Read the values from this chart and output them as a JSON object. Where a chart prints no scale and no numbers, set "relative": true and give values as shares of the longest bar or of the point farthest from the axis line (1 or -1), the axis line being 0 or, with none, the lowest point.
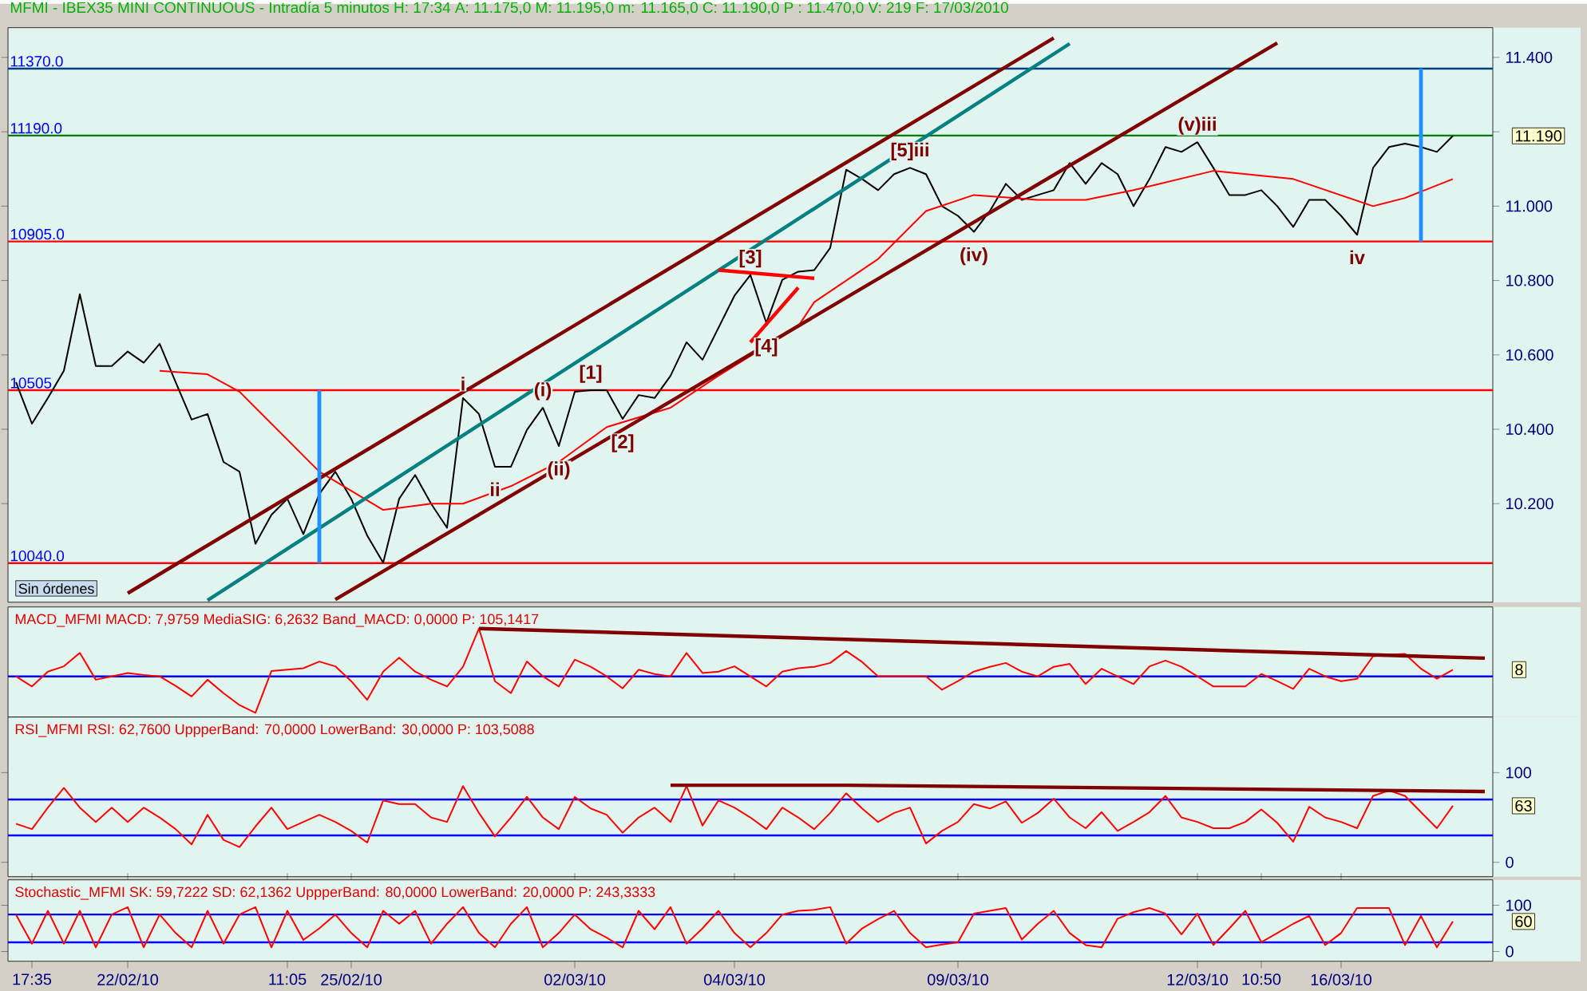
{
  "chart_data": [
    {
      "type": "line",
      "title": "MFMI - IBEX35 MINI CONTINUOUS - Intradía 5 minutos  H: 17:34  A: 11.175,0  M: 11.195,0  m: 11.165,0  C: 11.190,0  P : 11.470,0  V: 219  F: 17/03/2010",
      "categories": [
        null,
        null,
        null,
        null,
        null,
        null,
        null,
        null,
        null,
        null,
        null,
        null,
        null,
        null,
        null,
        null,
        null,
        null,
        null,
        null,
        null,
        null,
        null,
        null,
        null,
        null,
        null,
        null,
        null,
        null,
        null,
        null,
        null,
        null,
        null,
        null,
        null,
        null,
        null,
        null,
        null,
        null,
        null,
        null,
        null,
        null,
        null,
        null,
        null,
        null,
        null,
        null,
        null,
        null,
        null,
        null,
        null,
        null,
        null,
        null,
        null,
        null,
        null,
        null,
        null,
        null,
        null,
        null,
        null,
        null,
        null,
        null,
        null,
        null,
        null,
        null,
        null,
        null,
        null,
        null,
        null,
        null,
        null,
        null,
        null,
        null,
        null,
        null,
        null,
        null,
        null,
        null,
        null
      ],
      "ylim": [
        9.935,
        11.48
      ],
      "yticks": [
        {
          "value": 10.2,
          "label": "10.200"
        },
        {
          "value": 10.4,
          "label": "10.400"
        },
        {
          "value": 10.6,
          "label": "10.600"
        },
        {
          "value": 10.8,
          "label": "10.800"
        },
        {
          "value": 11.0,
          "label": "11.000"
        },
        {
          "value": 11.2,
          "label": null
        },
        {
          "value": 11.4,
          "label": "11.400"
        }
      ],
      "tick_labels": "y",
      "series": [
        {
          "color": "#000000",
          "values": [
            10.527,
            10.415,
            10.484,
            10.557,
            10.763,
            10.57,
            10.57,
            10.609,
            10.579,
            10.63,
            10.527,
            10.426,
            10.441,
            10.312,
            10.286,
            10.092,
            10.17,
            10.213,
            10.118,
            10.226,
            10.286,
            10.213,
            10.114,
            10.041,
            10.213,
            10.277,
            10.2,
            10.135,
            10.484,
            10.441,
            10.299,
            10.299,
            10.398,
            10.458,
            10.355,
            10.501,
            10.505,
            10.505,
            10.428,
            10.492,
            10.484,
            10.544,
            10.634,
            10.587,
            10.673,
            10.759,
            10.815,
            10.686,
            10.802,
            10.824,
            10.828,
            10.888,
            11.098,
            11.073,
            11.043,
            11.086,
            11.103,
            11.086,
            11.0,
            10.974,
            10.931,
            10.987,
            11.06,
            11.017,
            11.03,
            11.043,
            11.116,
            11.06,
            11.116,
            11.086,
            11.0,
            11.073,
            11.159,
            11.146,
            11.172,
            11.103,
            11.03,
            11.03,
            11.043,
            11.0,
            10.944,
            11.017,
            11.017,
            10.974,
            10.923,
            11.103,
            11.159,
            11.168,
            11.159,
            11.146,
            11.189,
            null,
            null
          ]
        },
        {
          "color": "#ff0000",
          "values": [
            null,
            null,
            null,
            null,
            null,
            null,
            null,
            null,
            null,
            10.557,
            null,
            null,
            10.548,
            null,
            10.501,
            null,
            null,
            null,
            null,
            10.286,
            null,
            null,
            null,
            10.183,
            null,
            null,
            10.2,
            null,
            10.2,
            null,
            null,
            10.247,
            null,
            null,
            10.312,
            null,
            null,
            10.406,
            null,
            null,
            null,
            10.458,
            null,
            null,
            10.544,
            null,
            null,
            null,
            null,
            10.677,
            10.742,
            null,
            null,
            null,
            10.858,
            null,
            null,
            10.987,
            null,
            null,
            11.03,
            null,
            null,
            null,
            11.017,
            null,
            null,
            11.017,
            null,
            null,
            11.043,
            null,
            null,
            null,
            null,
            11.095,
            null,
            null,
            null,
            null,
            11.073,
            null,
            null,
            null,
            null,
            11.0,
            null,
            11.022,
            null,
            null,
            11.073,
            null,
            null
          ]
        },
        {
          "color": "#800000",
          "values": [
            null,
            null,
            null,
            null,
            null,
            null,
            null,
            9.959,
            null,
            null,
            null,
            null,
            null,
            null,
            null,
            null,
            null,
            null,
            null,
            null,
            null,
            null,
            null,
            null,
            null,
            null,
            null,
            null,
            null,
            null,
            null,
            null,
            null,
            null,
            null,
            null,
            null,
            null,
            null,
            null,
            null,
            null,
            null,
            null,
            null,
            null,
            null,
            null,
            null,
            null,
            null,
            null,
            null,
            null,
            null,
            null,
            null,
            null,
            null,
            null,
            null,
            null,
            null,
            null,
            null,
            11.452,
            null,
            null,
            null,
            null,
            null,
            null,
            null,
            null,
            null,
            null,
            null,
            null,
            null,
            null,
            null,
            null,
            null,
            null,
            null,
            null,
            null,
            null,
            null,
            null,
            null,
            null,
            null
          ]
        },
        {
          "color": "#008080",
          "values": [
            null,
            null,
            null,
            null,
            null,
            null,
            null,
            null,
            null,
            null,
            null,
            null,
            9.94,
            null,
            null,
            null,
            null,
            null,
            null,
            null,
            null,
            null,
            null,
            null,
            null,
            null,
            null,
            null,
            null,
            null,
            null,
            null,
            null,
            null,
            null,
            null,
            null,
            null,
            null,
            null,
            null,
            null,
            null,
            null,
            null,
            null,
            null,
            null,
            null,
            null,
            null,
            null,
            null,
            null,
            null,
            null,
            null,
            null,
            null,
            null,
            null,
            null,
            null,
            null,
            null,
            null,
            11.437,
            null,
            null,
            null,
            null,
            null,
            null,
            null,
            null,
            null,
            null,
            null,
            null,
            null,
            null,
            null,
            null,
            null,
            null,
            null,
            null,
            null,
            null,
            null,
            null,
            null,
            null
          ]
        },
        {
          "color": "#800000",
          "values": [
            null,
            null,
            null,
            null,
            null,
            null,
            null,
            null,
            null,
            null,
            null,
            null,
            null,
            null,
            null,
            null,
            null,
            null,
            null,
            null,
            9.942,
            null,
            null,
            null,
            null,
            null,
            null,
            null,
            null,
            null,
            null,
            null,
            null,
            null,
            null,
            null,
            null,
            null,
            null,
            null,
            null,
            null,
            null,
            null,
            null,
            null,
            null,
            null,
            null,
            null,
            null,
            null,
            null,
            null,
            null,
            null,
            null,
            null,
            null,
            null,
            null,
            null,
            null,
            null,
            null,
            null,
            null,
            null,
            null,
            null,
            null,
            null,
            null,
            null,
            null,
            null,
            null,
            null,
            null,
            11.439,
            null,
            null,
            null,
            null,
            null,
            null,
            null,
            null,
            null,
            null,
            null,
            null,
            null
          ]
        },
        {
          "color": "#ff0000",
          "values": [
            null,
            null,
            null,
            null,
            null,
            null,
            null,
            null,
            null,
            null,
            null,
            null,
            null,
            null,
            null,
            null,
            null,
            null,
            null,
            null,
            null,
            null,
            null,
            null,
            null,
            null,
            null,
            null,
            null,
            null,
            null,
            null,
            null,
            null,
            null,
            null,
            null,
            null,
            null,
            null,
            null,
            null,
            null,
            null,
            10.828,
            null,
            null,
            null,
            null,
            null,
            10.806,
            null,
            null,
            null,
            null,
            null,
            null,
            null,
            null,
            null,
            null,
            null,
            null,
            null,
            null,
            null,
            null,
            null,
            null,
            null,
            null,
            null,
            null,
            null,
            null,
            null,
            null,
            null,
            null,
            null,
            null,
            null,
            null,
            null,
            null,
            null,
            null,
            null,
            null,
            null,
            null,
            null,
            null
          ]
        },
        {
          "color": "#ff0000",
          "values": [
            null,
            null,
            null,
            null,
            null,
            null,
            null,
            null,
            null,
            null,
            null,
            null,
            null,
            null,
            null,
            null,
            null,
            null,
            null,
            null,
            null,
            null,
            null,
            null,
            null,
            null,
            null,
            null,
            null,
            null,
            null,
            null,
            null,
            null,
            null,
            null,
            null,
            null,
            null,
            null,
            null,
            null,
            null,
            null,
            null,
            null,
            10.634,
            null,
            null,
            10.781,
            null,
            null,
            null,
            null,
            null,
            null,
            null,
            null,
            null,
            null,
            null,
            null,
            null,
            null,
            null,
            null,
            null,
            null,
            null,
            null,
            null,
            null,
            null,
            null,
            null,
            null,
            null,
            null,
            null,
            null,
            null,
            null,
            null,
            null,
            null,
            null,
            null,
            null,
            null,
            null,
            null,
            null,
            null
          ]
        },
        {
          "type": "bar",
          "color": "#1e90ff",
          "values": [
            null,
            null,
            null,
            null,
            null,
            null,
            null,
            null,
            null,
            null,
            null,
            null,
            null,
            null,
            null,
            null,
            null,
            null,
            null,
            0.465,
            null,
            null,
            null,
            null,
            null,
            null,
            null,
            null,
            null,
            null,
            null,
            null,
            null,
            null,
            null,
            null,
            null,
            null,
            null,
            null,
            null,
            null,
            null,
            null,
            null,
            null,
            null,
            null,
            null,
            null,
            null,
            null,
            null,
            null,
            null,
            null,
            null,
            null,
            null,
            null,
            null,
            null,
            null,
            null,
            null,
            null,
            null,
            null,
            null,
            null,
            null,
            null,
            null,
            null,
            null,
            null,
            null,
            null,
            null,
            null,
            null,
            null,
            null,
            null,
            null,
            null,
            null,
            null,
            0.465,
            null,
            null,
            null,
            null
          ],
          "base": [
            null,
            null,
            null,
            null,
            null,
            null,
            null,
            null,
            null,
            null,
            null,
            null,
            null,
            null,
            null,
            null,
            null,
            null,
            null,
            10.04,
            null,
            null,
            null,
            null,
            null,
            null,
            null,
            null,
            null,
            null,
            null,
            null,
            null,
            null,
            null,
            null,
            null,
            null,
            null,
            null,
            null,
            null,
            null,
            null,
            null,
            null,
            null,
            null,
            null,
            null,
            null,
            null,
            null,
            null,
            null,
            null,
            null,
            null,
            null,
            null,
            null,
            null,
            null,
            null,
            null,
            null,
            null,
            null,
            null,
            null,
            null,
            null,
            null,
            null,
            null,
            null,
            null,
            null,
            null,
            null,
            null,
            null,
            null,
            null,
            null,
            null,
            null,
            null,
            10.905,
            null,
            null,
            null,
            null
          ]
        }
      ],
      "ref_lines": [
        {
          "axis": "y",
          "value": 11.37,
          "label": "11370.0",
          "color": "#004080"
        },
        {
          "axis": "y",
          "value": 11.19,
          "label": "11190.0",
          "color": "#008000"
        },
        {
          "axis": "y",
          "value": 10.905,
          "label": "10905.0",
          "color": "#ff0000"
        },
        {
          "axis": "y",
          "value": 10.505,
          "label": "10505",
          "color": "#ff0000"
        },
        {
          "axis": "y",
          "value": 10.04,
          "label": "10040.0",
          "color": "#ff0000"
        }
      ],
      "annotations": [
        {
          "text": "i",
          "y": 10.484
        },
        {
          "text": "ii",
          "y": 10.299
        },
        {
          "text": "(i)",
          "y": 10.458
        },
        {
          "text": "(ii)",
          "y": 10.355
        },
        {
          "text": "[1]",
          "y": 10.505
        },
        {
          "text": "[2]",
          "y": 10.428
        },
        {
          "text": "[3]",
          "y": 10.815
        },
        {
          "text": "[4]",
          "y": 10.686
        },
        {
          "text": "[5]iii",
          "y": 11.103
        },
        {
          "text": "(iv)",
          "y": 10.931
        },
        {
          "text": "(v)iii",
          "y": 11.172
        },
        {
          "text": "iv",
          "y": 10.923
        },
        "11.190",
        "Sin órdenes"
      ]
    },
    {
      "type": "line",
      "title": "MACD_MFMI  MACD: 7,9759  MediaSIG: 6,2632  Band_MACD: 0,0000  P: 105,1417",
      "relative": true,
      "categories": [
        null,
        null,
        null,
        null,
        null,
        null,
        null,
        null,
        null,
        null,
        null,
        null,
        null,
        null,
        null,
        null,
        null,
        null,
        null,
        null,
        null,
        null,
        null,
        null,
        null,
        null,
        null,
        null,
        null,
        null,
        null,
        null,
        null,
        null,
        null,
        null,
        null,
        null,
        null,
        null,
        null,
        null,
        null,
        null,
        null,
        null,
        null,
        null,
        null,
        null,
        null,
        null,
        null,
        null,
        null,
        null,
        null,
        null,
        null,
        null,
        null,
        null,
        null,
        null,
        null,
        null,
        null,
        null,
        null,
        null,
        null,
        null,
        null,
        null,
        null,
        null,
        null,
        null,
        null,
        null,
        null,
        null,
        null,
        null,
        null,
        null,
        null,
        null,
        null,
        null,
        null,
        null,
        null
      ],
      "tick_labels": false,
      "series": [
        {
          "color": "#ff0000",
          "values": [
            0,
            -0.21,
            0.1,
            0.21,
            0.49,
            -0.07,
            0,
            0.07,
            0.03,
            0,
            -0.2,
            -0.42,
            -0.07,
            -0.35,
            -0.6,
            -0.76,
            0.11,
            0.14,
            0.17,
            0.31,
            0.21,
            -0.1,
            -0.49,
            0.1,
            0.39,
            0.1,
            -0.07,
            -0.21,
            0.2,
            1,
            -0.1,
            -0.35,
            0.31,
            0,
            -0.21,
            0.35,
            0.2,
            0,
            -0.25,
            0.14,
            0.05,
            0,
            0.49,
            0.07,
            0.1,
            0.21,
            0,
            -0.21,
            0.1,
            0.17,
            0.2,
            0.28,
            0.53,
            0.3,
            0,
            0,
            0,
            0,
            -0.28,
            -0.1,
            0.1,
            0.2,
            0.28,
            0.1,
            0,
            0.2,
            0.26,
            -0.16,
            0.16,
            0,
            -0.16,
            0.21,
            0.33,
            0.2,
            0,
            -0.21,
            -0.21,
            -0.21,
            0.05,
            -0.1,
            -0.26,
            0.16,
            0,
            -0.1,
            -0.05,
            0.42,
            0.45,
            0.47,
            0.16,
            -0.05,
            0.14,
            null,
            null
          ]
        },
        {
          "color": "#800000",
          "values": [
            null,
            null,
            null,
            null,
            null,
            null,
            null,
            null,
            null,
            null,
            null,
            null,
            null,
            null,
            null,
            null,
            null,
            null,
            null,
            null,
            null,
            null,
            null,
            null,
            null,
            null,
            null,
            null,
            null,
            1,
            null,
            null,
            null,
            null,
            null,
            null,
            null,
            null,
            null,
            null,
            null,
            null,
            null,
            null,
            null,
            null,
            null,
            null,
            null,
            null,
            null,
            null,
            null,
            null,
            null,
            null,
            null,
            null,
            null,
            null,
            null,
            null,
            null,
            null,
            null,
            null,
            null,
            null,
            null,
            null,
            null,
            null,
            null,
            null,
            null,
            null,
            null,
            null,
            null,
            null,
            null,
            null,
            null,
            null,
            null,
            null,
            null,
            null,
            null,
            null,
            null,
            null,
            0.38
          ]
        }
      ],
      "ref_lines": [
        {
          "axis": "y",
          "value": 0,
          "color": "#0000ff"
        }
      ],
      "annotations": [
        "8"
      ]
    },
    {
      "type": "line",
      "title": "RSI_MFMI  RSI: 62,7600  UppperBand: 70,0000  LowerBand: 30,0000  P: 103,5088",
      "categories": [
        null,
        null,
        null,
        null,
        null,
        null,
        null,
        null,
        null,
        null,
        null,
        null,
        null,
        null,
        null,
        null,
        null,
        null,
        null,
        null,
        null,
        null,
        null,
        null,
        null,
        null,
        null,
        null,
        null,
        null,
        null,
        null,
        null,
        null,
        null,
        null,
        null,
        null,
        null,
        null,
        null,
        null,
        null,
        null,
        null,
        null,
        null,
        null,
        null,
        null,
        null,
        null,
        null,
        null,
        null,
        null,
        null,
        null,
        null,
        null,
        null,
        null,
        null,
        null,
        null,
        null,
        null,
        null,
        null,
        null,
        null,
        null,
        null,
        null,
        null,
        null,
        null,
        null,
        null,
        null,
        null,
        null,
        null,
        null,
        null,
        null,
        null,
        null,
        null,
        null,
        null,
        null,
        null
      ],
      "ylim": [
        -16,
        162
      ],
      "yticks": [
        0,
        100
      ],
      "tick_labels": "y",
      "series": [
        {
          "color": "#ff0000",
          "values": [
            43,
            37,
            61,
            83,
            61,
            45,
            61,
            45,
            61,
            50,
            37,
            20,
            53,
            25,
            17,
            40,
            61,
            37,
            45,
            53,
            45,
            35,
            22,
            69,
            65,
            65,
            50,
            45,
            85,
            55,
            29,
            50,
            73,
            50,
            37,
            73,
            60,
            53,
            33,
            50,
            61,
            45,
            85,
            41,
            69,
            61,
            50,
            37,
            61,
            50,
            37,
            55,
            77,
            60,
            45,
            55,
            61,
            21,
            35,
            45,
            65,
            60,
            68,
            44,
            55,
            71,
            50,
            38,
            56,
            35,
            45,
            56,
            74,
            50,
            45,
            38,
            38,
            45,
            59,
            44,
            23,
            62,
            50,
            45,
            38,
            74,
            80,
            74,
            56,
            38,
            63,
            null,
            null
          ]
        },
        {
          "color": "#800000",
          "values": [
            null,
            null,
            null,
            null,
            null,
            null,
            null,
            null,
            null,
            null,
            null,
            null,
            null,
            null,
            null,
            null,
            null,
            null,
            null,
            null,
            null,
            null,
            null,
            null,
            null,
            null,
            null,
            null,
            null,
            null,
            null,
            null,
            null,
            null,
            null,
            null,
            null,
            null,
            null,
            null,
            null,
            86,
            null,
            null,
            null,
            null,
            null,
            null,
            null,
            null,
            null,
            null,
            86,
            null,
            null,
            null,
            null,
            null,
            null,
            null,
            null,
            null,
            null,
            null,
            null,
            null,
            null,
            null,
            null,
            null,
            null,
            null,
            null,
            null,
            null,
            null,
            null,
            null,
            null,
            null,
            null,
            null,
            null,
            null,
            null,
            null,
            null,
            null,
            null,
            null,
            null,
            null,
            79
          ]
        }
      ],
      "ref_lines": [
        {
          "axis": "y",
          "value": 70,
          "color": "#0000ff"
        },
        {
          "axis": "y",
          "value": 30,
          "color": "#0000ff"
        }
      ],
      "annotations": [
        "63"
      ]
    },
    {
      "type": "line",
      "title": "Stochastic_MFMI  SK: 59,7222  SD: 62,1362  UppperBand: 80,0000  LowerBand: 20,0000  P: 243,3333",
      "categories": [
        null,
        "17:35",
        null,
        null,
        null,
        null,
        null,
        "22/02/10",
        null,
        null,
        null,
        null,
        null,
        null,
        null,
        null,
        null,
        "11:05",
        null,
        null,
        null,
        "25/02/10",
        null,
        null,
        null,
        null,
        null,
        null,
        null,
        null,
        null,
        null,
        null,
        null,
        null,
        "02/03/10",
        null,
        null,
        null,
        null,
        null,
        null,
        null,
        null,
        null,
        "04/03/10",
        null,
        null,
        null,
        null,
        null,
        null,
        null,
        null,
        null,
        null,
        null,
        null,
        null,
        "09/03/10",
        null,
        null,
        null,
        null,
        null,
        null,
        null,
        null,
        null,
        null,
        null,
        null,
        null,
        null,
        "12/03/10",
        null,
        null,
        null,
        "10:50",
        null,
        null,
        null,
        null,
        "16/03/10",
        null,
        null,
        null,
        null,
        null,
        null,
        null,
        null,
        null
      ],
      "ylim": [
        -21,
        155
      ],
      "yticks": [
        0,
        100
      ],
      "series": [
        {
          "color": "#ff0000",
          "values": [
            80,
            17,
            88,
            17,
            88,
            9,
            80,
            96,
            9,
            80,
            40,
            9,
            88,
            17,
            80,
            96,
            9,
            88,
            25,
            50,
            80,
            40,
            9,
            88,
            60,
            88,
            17,
            60,
            96,
            40,
            9,
            60,
            96,
            9,
            40,
            80,
            48,
            30,
            9,
            88,
            48,
            96,
            17,
            50,
            88,
            40,
            9,
            40,
            80,
            88,
            90,
            96,
            17,
            50,
            70,
            88,
            40,
            9,
            15,
            20,
            82,
            88,
            94,
            26,
            60,
            88,
            40,
            14,
            9,
            71,
            85,
            94,
            82,
            37,
            82,
            14,
            50,
            88,
            20,
            40,
            60,
            77,
            14,
            40,
            94,
            94,
            94,
            14,
            77,
            9,
            65,
            null,
            null
          ]
        }
      ],
      "ref_lines": [
        {
          "axis": "y",
          "value": 80,
          "color": "#0000ff"
        },
        {
          "axis": "y",
          "value": 20,
          "color": "#0000ff"
        }
      ],
      "annotations": [
        "60"
      ]
    }
  ]
}
